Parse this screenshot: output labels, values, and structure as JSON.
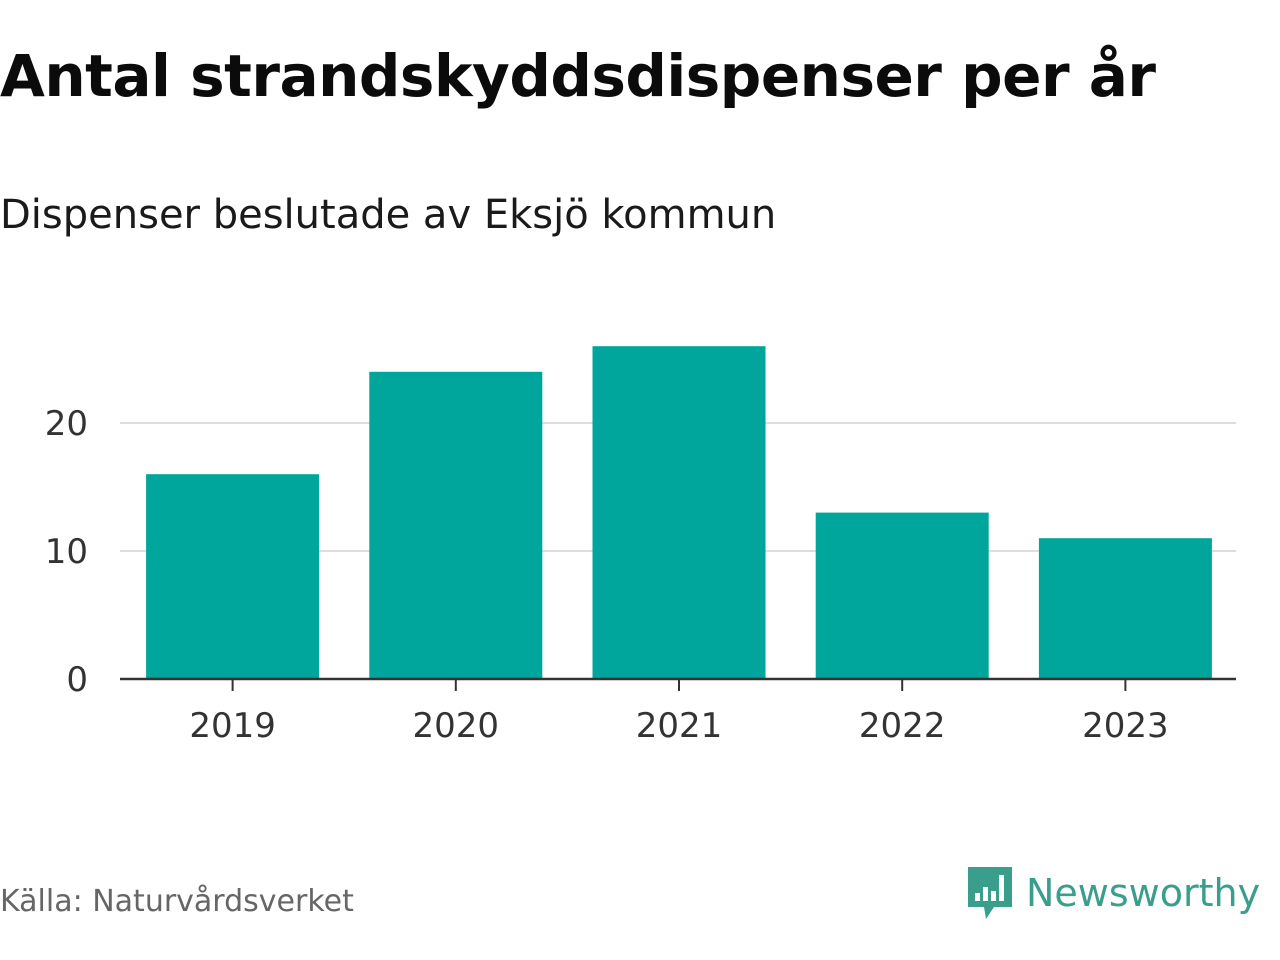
{
  "title": "Antal strandskyddsdispenser per år",
  "subtitle": "Dispenser beslutade av Eksjö kommun",
  "source": "Källa: Naturvårdsverket",
  "brand": {
    "name": "Newsworthy",
    "icon": "newsworthy-logo-icon"
  },
  "colors": {
    "bar": "#00a59b",
    "grid": "#dddddd",
    "axis": "#333333",
    "brand": "#3a9e8d"
  },
  "chart_data": {
    "type": "bar",
    "title": "Antal strandskyddsdispenser per år",
    "subtitle": "Dispenser beslutade av Eksjö kommun",
    "categories": [
      "2019",
      "2020",
      "2021",
      "2022",
      "2023"
    ],
    "values": [
      16,
      24,
      26,
      13,
      11
    ],
    "xlabel": "",
    "ylabel": "",
    "ylim": [
      0,
      30
    ],
    "yticks": [
      0,
      10,
      20
    ],
    "grid": true,
    "legend": "none"
  }
}
